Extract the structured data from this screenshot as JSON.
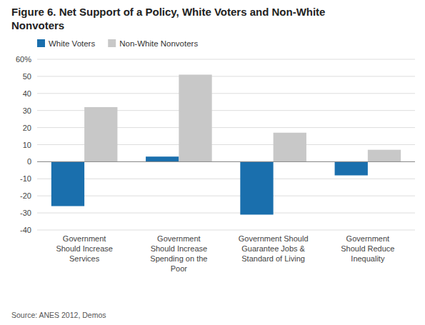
{
  "chart_data": {
    "type": "bar",
    "title": "Figure 6. Net Support of a Policy, White Voters and Non-White\nNonvoters",
    "categories": [
      "Government\nShould Increase\nServices",
      "Government\nShould Increase\nSpending on the\nPoor",
      "Government Should\nGuarantee Jobs &\nStandard of Living",
      "Government\nShould Reduce\nInequality"
    ],
    "series": [
      {
        "name": "White Voters",
        "color": "#1A6FAD",
        "values": [
          -26,
          3,
          -31,
          -8
        ]
      },
      {
        "name": "Non-White Nonvoters",
        "color": "#C8C8C8",
        "values": [
          32,
          51,
          17,
          7
        ]
      }
    ],
    "ylim": [
      -40,
      60
    ],
    "yticks": [
      -40,
      -30,
      -20,
      -10,
      0,
      10,
      20,
      30,
      40,
      50,
      {
        "value": 60,
        "label": "60%"
      }
    ],
    "grid": true,
    "legend": "upper left",
    "source": "Source: ANES 2012, Demos"
  }
}
